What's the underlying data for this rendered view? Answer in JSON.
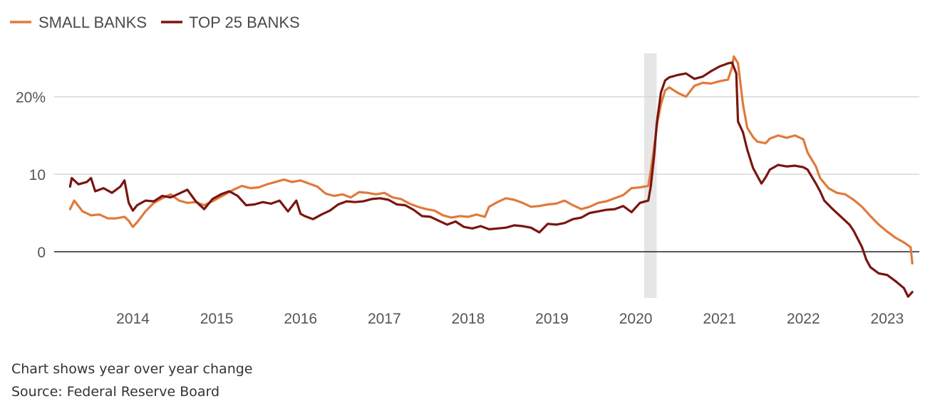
{
  "chart_data": {
    "type": "line",
    "legend": {
      "placement": "top-left",
      "items": [
        "SMALL BANKS",
        "TOP 25 BANKS"
      ]
    },
    "colors": {
      "small_banks": "#e07a3c",
      "top25": "#7a1510",
      "recession": "#e6e6e6",
      "grid": "#cfcfcf",
      "zero": "#222222"
    },
    "x_range": [
      2013.2,
      2023.35
    ],
    "ylim": [
      -6,
      26
    ],
    "y_ticks": [
      {
        "value": 0,
        "label": "0"
      },
      {
        "value": 10,
        "label": "10"
      },
      {
        "value": 20,
        "label": "20%"
      }
    ],
    "x_ticks": [
      {
        "value": 2014,
        "label": "2014"
      },
      {
        "value": 2015,
        "label": "2015"
      },
      {
        "value": 2016,
        "label": "2016"
      },
      {
        "value": 2017,
        "label": "2017"
      },
      {
        "value": 2018,
        "label": "2018"
      },
      {
        "value": 2019,
        "label": "2019"
      },
      {
        "value": 2020,
        "label": "2020"
      },
      {
        "value": 2021,
        "label": "2021"
      },
      {
        "value": 2022,
        "label": "2022"
      },
      {
        "value": 2023,
        "label": "2023"
      }
    ],
    "shaded_period": [
      2020.1,
      2020.25
    ],
    "grid": true,
    "series": [
      {
        "name": "SMALL BANKS",
        "key": "small_banks",
        "points": [
          [
            2013.25,
            5.5
          ],
          [
            2013.3,
            6.6
          ],
          [
            2013.4,
            5.2
          ],
          [
            2013.5,
            4.7
          ],
          [
            2013.6,
            4.8
          ],
          [
            2013.7,
            4.3
          ],
          [
            2013.8,
            4.3
          ],
          [
            2013.9,
            4.5
          ],
          [
            2013.95,
            4.0
          ],
          [
            2014.0,
            3.2
          ],
          [
            2014.05,
            3.8
          ],
          [
            2014.15,
            5.2
          ],
          [
            2014.25,
            6.3
          ],
          [
            2014.35,
            6.9
          ],
          [
            2014.45,
            7.4
          ],
          [
            2014.55,
            6.6
          ],
          [
            2014.65,
            6.3
          ],
          [
            2014.75,
            6.4
          ],
          [
            2014.85,
            6.0
          ],
          [
            2014.95,
            6.5
          ],
          [
            2015.0,
            6.8
          ],
          [
            2015.1,
            7.4
          ],
          [
            2015.2,
            8.0
          ],
          [
            2015.3,
            8.5
          ],
          [
            2015.4,
            8.2
          ],
          [
            2015.5,
            8.3
          ],
          [
            2015.6,
            8.7
          ],
          [
            2015.7,
            9.0
          ],
          [
            2015.8,
            9.3
          ],
          [
            2015.9,
            9.0
          ],
          [
            2016.0,
            9.2
          ],
          [
            2016.1,
            8.8
          ],
          [
            2016.2,
            8.4
          ],
          [
            2016.3,
            7.5
          ],
          [
            2016.4,
            7.2
          ],
          [
            2016.5,
            7.4
          ],
          [
            2016.6,
            7.0
          ],
          [
            2016.7,
            7.7
          ],
          [
            2016.8,
            7.6
          ],
          [
            2016.9,
            7.4
          ],
          [
            2017.0,
            7.6
          ],
          [
            2017.1,
            7.0
          ],
          [
            2017.2,
            6.8
          ],
          [
            2017.3,
            6.2
          ],
          [
            2017.4,
            5.8
          ],
          [
            2017.5,
            5.5
          ],
          [
            2017.6,
            5.3
          ],
          [
            2017.7,
            4.7
          ],
          [
            2017.8,
            4.4
          ],
          [
            2017.9,
            4.6
          ],
          [
            2018.0,
            4.5
          ],
          [
            2018.1,
            4.8
          ],
          [
            2018.2,
            4.5
          ],
          [
            2018.25,
            5.8
          ],
          [
            2018.35,
            6.4
          ],
          [
            2018.45,
            6.9
          ],
          [
            2018.55,
            6.7
          ],
          [
            2018.65,
            6.3
          ],
          [
            2018.75,
            5.8
          ],
          [
            2018.85,
            5.9
          ],
          [
            2018.95,
            6.1
          ],
          [
            2019.05,
            6.2
          ],
          [
            2019.15,
            6.6
          ],
          [
            2019.25,
            6.0
          ],
          [
            2019.35,
            5.5
          ],
          [
            2019.45,
            5.8
          ],
          [
            2019.55,
            6.3
          ],
          [
            2019.65,
            6.5
          ],
          [
            2019.75,
            6.9
          ],
          [
            2019.85,
            7.3
          ],
          [
            2019.95,
            8.2
          ],
          [
            2020.05,
            8.3
          ],
          [
            2020.15,
            8.5
          ],
          [
            2020.18,
            10.5
          ],
          [
            2020.22,
            13.5
          ],
          [
            2020.26,
            16.8
          ],
          [
            2020.3,
            19.0
          ],
          [
            2020.35,
            20.8
          ],
          [
            2020.4,
            21.2
          ],
          [
            2020.5,
            20.5
          ],
          [
            2020.6,
            20.0
          ],
          [
            2020.7,
            21.4
          ],
          [
            2020.8,
            21.8
          ],
          [
            2020.9,
            21.7
          ],
          [
            2021.0,
            22.0
          ],
          [
            2021.1,
            22.2
          ],
          [
            2021.15,
            23.8
          ],
          [
            2021.17,
            25.2
          ],
          [
            2021.22,
            24.3
          ],
          [
            2021.28,
            19.0
          ],
          [
            2021.33,
            16.0
          ],
          [
            2021.4,
            14.8
          ],
          [
            2021.45,
            14.2
          ],
          [
            2021.55,
            14.0
          ],
          [
            2021.6,
            14.6
          ],
          [
            2021.7,
            15.0
          ],
          [
            2021.8,
            14.7
          ],
          [
            2021.9,
            15.0
          ],
          [
            2022.0,
            14.5
          ],
          [
            2022.05,
            12.8
          ],
          [
            2022.15,
            11.0
          ],
          [
            2022.2,
            9.5
          ],
          [
            2022.3,
            8.2
          ],
          [
            2022.4,
            7.6
          ],
          [
            2022.5,
            7.4
          ],
          [
            2022.6,
            6.7
          ],
          [
            2022.7,
            5.8
          ],
          [
            2022.8,
            4.6
          ],
          [
            2022.9,
            3.5
          ],
          [
            2023.0,
            2.6
          ],
          [
            2023.1,
            1.8
          ],
          [
            2023.2,
            1.2
          ],
          [
            2023.28,
            0.6
          ],
          [
            2023.3,
            -1.5
          ]
        ]
      },
      {
        "name": "TOP 25 BANKS",
        "key": "top25",
        "points": [
          [
            2013.25,
            8.4
          ],
          [
            2013.27,
            9.5
          ],
          [
            2013.35,
            8.7
          ],
          [
            2013.45,
            9.0
          ],
          [
            2013.5,
            9.5
          ],
          [
            2013.55,
            7.8
          ],
          [
            2013.65,
            8.2
          ],
          [
            2013.75,
            7.6
          ],
          [
            2013.85,
            8.4
          ],
          [
            2013.9,
            9.2
          ],
          [
            2013.95,
            6.3
          ],
          [
            2014.0,
            5.3
          ],
          [
            2014.05,
            6.0
          ],
          [
            2014.15,
            6.6
          ],
          [
            2014.25,
            6.5
          ],
          [
            2014.35,
            7.2
          ],
          [
            2014.45,
            7.0
          ],
          [
            2014.55,
            7.5
          ],
          [
            2014.65,
            8.0
          ],
          [
            2014.75,
            6.5
          ],
          [
            2014.85,
            5.5
          ],
          [
            2014.95,
            6.8
          ],
          [
            2015.05,
            7.4
          ],
          [
            2015.15,
            7.8
          ],
          [
            2015.25,
            7.2
          ],
          [
            2015.35,
            6.0
          ],
          [
            2015.45,
            6.1
          ],
          [
            2015.55,
            6.4
          ],
          [
            2015.65,
            6.2
          ],
          [
            2015.75,
            6.6
          ],
          [
            2015.85,
            5.2
          ],
          [
            2015.95,
            6.6
          ],
          [
            2016.0,
            4.9
          ],
          [
            2016.05,
            4.6
          ],
          [
            2016.15,
            4.2
          ],
          [
            2016.25,
            4.8
          ],
          [
            2016.35,
            5.3
          ],
          [
            2016.45,
            6.1
          ],
          [
            2016.55,
            6.5
          ],
          [
            2016.65,
            6.4
          ],
          [
            2016.75,
            6.5
          ],
          [
            2016.85,
            6.8
          ],
          [
            2016.95,
            6.9
          ],
          [
            2017.05,
            6.7
          ],
          [
            2017.15,
            6.1
          ],
          [
            2017.25,
            6.0
          ],
          [
            2017.35,
            5.4
          ],
          [
            2017.45,
            4.6
          ],
          [
            2017.55,
            4.5
          ],
          [
            2017.65,
            4.0
          ],
          [
            2017.75,
            3.5
          ],
          [
            2017.85,
            3.9
          ],
          [
            2017.95,
            3.2
          ],
          [
            2018.05,
            3.0
          ],
          [
            2018.15,
            3.3
          ],
          [
            2018.25,
            2.9
          ],
          [
            2018.35,
            3.0
          ],
          [
            2018.45,
            3.1
          ],
          [
            2018.55,
            3.4
          ],
          [
            2018.65,
            3.3
          ],
          [
            2018.75,
            3.1
          ],
          [
            2018.85,
            2.5
          ],
          [
            2018.95,
            3.6
          ],
          [
            2019.05,
            3.5
          ],
          [
            2019.15,
            3.7
          ],
          [
            2019.25,
            4.2
          ],
          [
            2019.35,
            4.4
          ],
          [
            2019.45,
            5.0
          ],
          [
            2019.55,
            5.2
          ],
          [
            2019.65,
            5.4
          ],
          [
            2019.75,
            5.5
          ],
          [
            2019.85,
            5.9
          ],
          [
            2019.95,
            5.1
          ],
          [
            2020.05,
            6.3
          ],
          [
            2020.15,
            6.6
          ],
          [
            2020.18,
            8.5
          ],
          [
            2020.22,
            12.5
          ],
          [
            2020.25,
            16.5
          ],
          [
            2020.3,
            20.5
          ],
          [
            2020.35,
            22.1
          ],
          [
            2020.4,
            22.5
          ],
          [
            2020.5,
            22.8
          ],
          [
            2020.6,
            23.0
          ],
          [
            2020.7,
            22.3
          ],
          [
            2020.8,
            22.6
          ],
          [
            2020.9,
            23.3
          ],
          [
            2021.0,
            23.9
          ],
          [
            2021.1,
            24.3
          ],
          [
            2021.15,
            24.4
          ],
          [
            2021.2,
            23.0
          ],
          [
            2021.22,
            16.8
          ],
          [
            2021.28,
            15.4
          ],
          [
            2021.33,
            13.2
          ],
          [
            2021.4,
            10.8
          ],
          [
            2021.45,
            9.8
          ],
          [
            2021.5,
            8.8
          ],
          [
            2021.55,
            9.6
          ],
          [
            2021.6,
            10.6
          ],
          [
            2021.7,
            11.2
          ],
          [
            2021.8,
            11.0
          ],
          [
            2021.9,
            11.1
          ],
          [
            2022.0,
            10.9
          ],
          [
            2022.05,
            10.6
          ],
          [
            2022.15,
            8.8
          ],
          [
            2022.2,
            7.8
          ],
          [
            2022.25,
            6.6
          ],
          [
            2022.35,
            5.5
          ],
          [
            2022.45,
            4.5
          ],
          [
            2022.55,
            3.5
          ],
          [
            2022.6,
            2.7
          ],
          [
            2022.7,
            0.6
          ],
          [
            2022.75,
            -1.0
          ],
          [
            2022.8,
            -2.0
          ],
          [
            2022.9,
            -2.8
          ],
          [
            2023.0,
            -3.0
          ],
          [
            2023.1,
            -3.8
          ],
          [
            2023.2,
            -4.7
          ],
          [
            2023.25,
            -5.8
          ],
          [
            2023.3,
            -5.2
          ]
        ]
      }
    ]
  },
  "notes": {
    "line1": "Chart shows year over year change",
    "line2": "Source: Federal Reserve Board"
  }
}
